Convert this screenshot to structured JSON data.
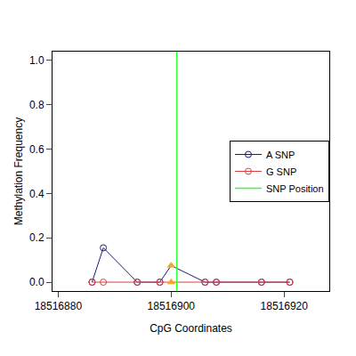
{
  "chart_data": {
    "type": "line",
    "x_label": "CpG Coordinates",
    "y_label": "Methylation Frequency",
    "x": [
      18516886,
      18516888,
      18516894,
      18516898,
      18516900,
      18516906,
      18516908,
      18516916,
      18516921
    ],
    "series": [
      {
        "name": "A SNP",
        "color": "#1a1a80",
        "values": [
          0,
          0.155,
          0,
          0,
          0.075,
          0,
          0,
          0,
          0
        ],
        "marker": [
          "circle",
          "circle",
          "circle",
          "circle",
          "triangle",
          "circle",
          "circle",
          "circle",
          "circle"
        ],
        "colors": [
          "#1a1a80",
          "#1a1a80",
          "#1a1a80",
          "#1a1a80",
          "#f5a623",
          "#1a1a80",
          "#1a1a80",
          "#1a1a80",
          "#1a1a80"
        ]
      },
      {
        "name": "G SNP",
        "color": "#d94040",
        "values": [
          0,
          0,
          0,
          0,
          0,
          0,
          0,
          0,
          0
        ],
        "marker": [
          "circle",
          "circle",
          "circle",
          "circle",
          "triangle",
          "circle",
          "circle",
          "circle",
          "circle"
        ],
        "colors": [
          "#d94040",
          "#d94040",
          "#d94040",
          "#d94040",
          "#f5a623",
          "#d94040",
          "#d94040",
          "#d94040",
          "#d94040"
        ]
      }
    ],
    "snp_position": {
      "name": "SNP Position",
      "x": 18516901,
      "color": "#33ff33"
    },
    "xlim": [
      18516879,
      18516928
    ],
    "xticks": [
      18516880,
      18516900,
      18516920
    ],
    "ylim": [
      -0.04,
      1.04
    ],
    "yticks": [
      {
        "value": 0,
        "label": "0.0"
      },
      0.2,
      0.4,
      0.6,
      0.8,
      {
        "value": 1,
        "label": "1.0"
      }
    ],
    "grid": false,
    "legend": "right"
  }
}
